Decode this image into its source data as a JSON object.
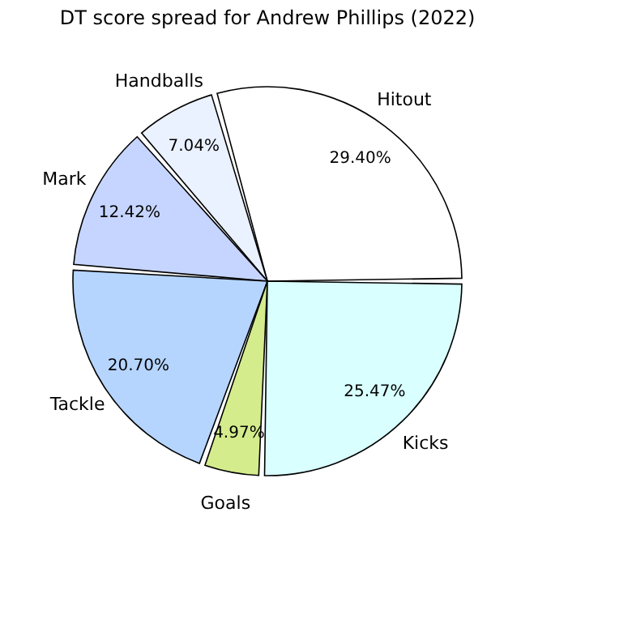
{
  "chart_data": {
    "type": "pie",
    "title": "DT score spread for Andrew Phillips (2022)",
    "categories": [
      "Hitout",
      "Handballs",
      "Mark",
      "Tackle",
      "Goals",
      "Kicks"
    ],
    "values": [
      29.4,
      7.04,
      12.42,
      20.7,
      4.97,
      25.47
    ],
    "colors": [
      "#ffffff",
      "#eaf1ff",
      "#c6d5ff",
      "#b5d5ff",
      "#d4ec8c",
      "#d9ffff"
    ],
    "value_labels": [
      "29.40%",
      "7.04%",
      "12.42%",
      "20.70%",
      "4.97%",
      "25.47%"
    ],
    "legend": false
  }
}
